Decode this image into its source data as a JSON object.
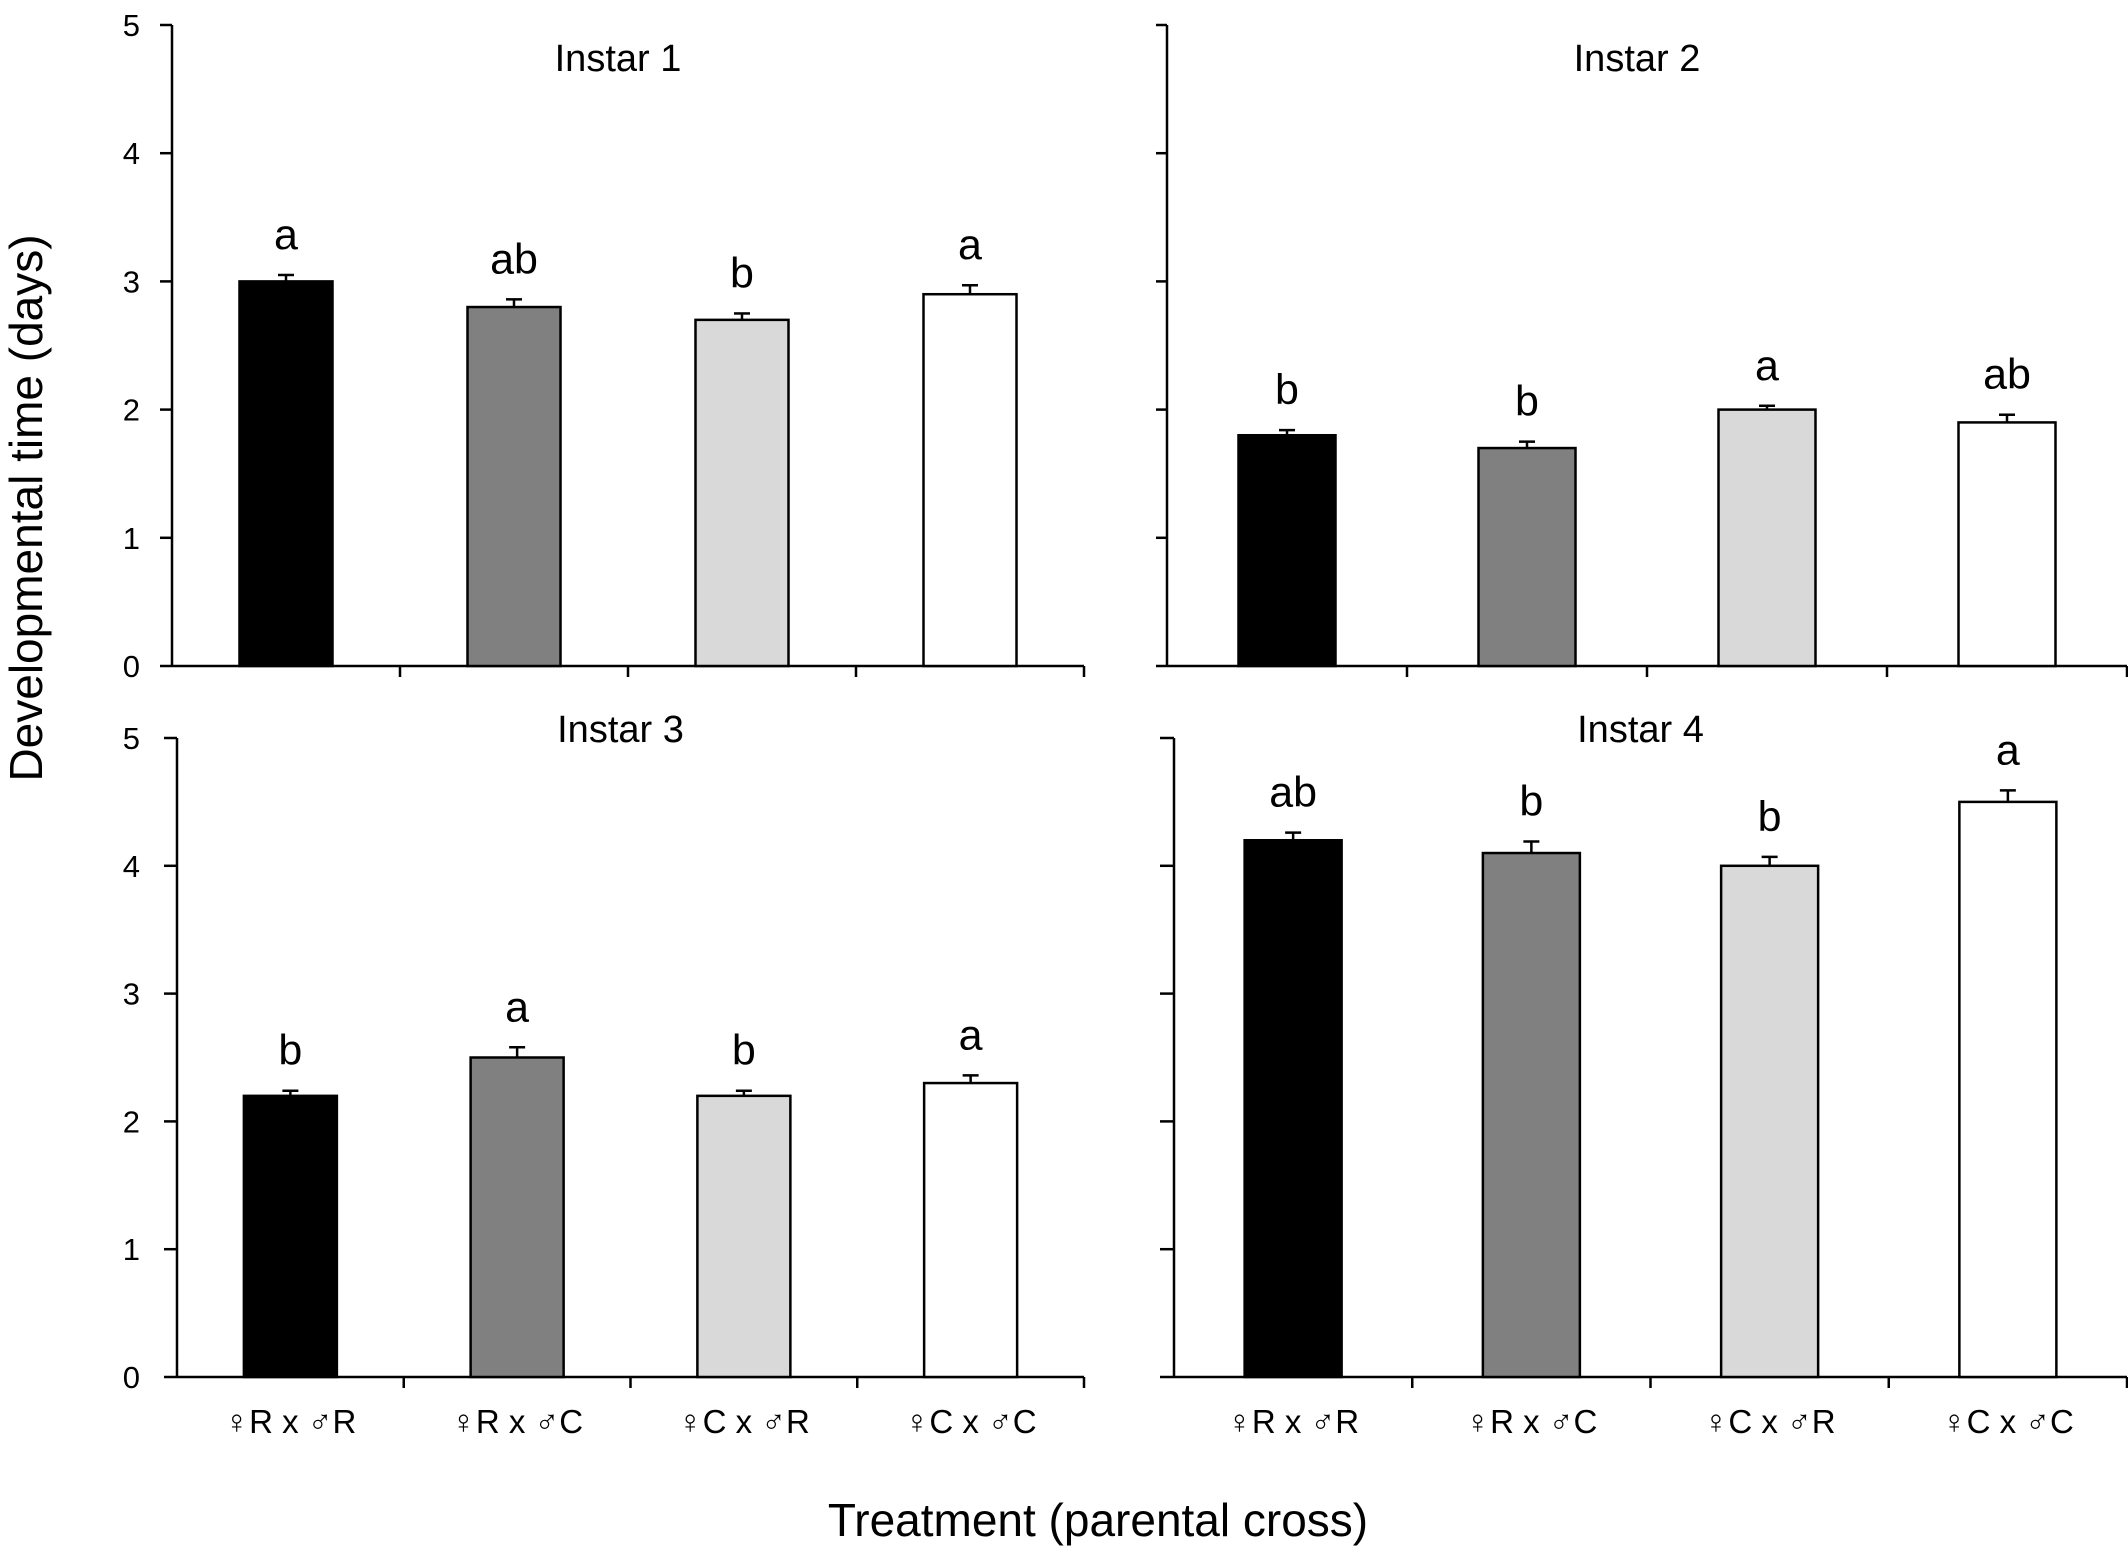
{
  "figure": {
    "ylabel": "Developmental time (days)",
    "xlabel": "Treatment (parental cross)"
  },
  "chart_data": [
    {
      "type": "bar",
      "title": "Instar 1",
      "categories": [
        "♀R x ♂R",
        "♀R x ♂C",
        "♀C x ♂R",
        "♀C x ♂C"
      ],
      "values": [
        3.0,
        2.8,
        2.7,
        2.9
      ],
      "errors": [
        0.05,
        0.06,
        0.05,
        0.07
      ],
      "letters": [
        "a",
        "ab",
        "b",
        "a"
      ],
      "ylim": [
        0,
        5
      ],
      "yticks": [
        0,
        1,
        2,
        3,
        4,
        5
      ],
      "show_categories": false
    },
    {
      "type": "bar",
      "title": "Instar 2",
      "categories": [
        "♀R x ♂R",
        "♀R x ♂C",
        "♀C x ♂R",
        "♀C x ♂C"
      ],
      "values": [
        1.8,
        1.7,
        2.0,
        1.9
      ],
      "errors": [
        0.04,
        0.05,
        0.03,
        0.06
      ],
      "letters": [
        "b",
        "b",
        "a",
        "ab"
      ],
      "ylim": [
        0,
        5
      ],
      "yticks": [],
      "show_categories": false
    },
    {
      "type": "bar",
      "title": "Instar 3",
      "categories": [
        "♀R x ♂R",
        "♀R x ♂C",
        "♀C x ♂R",
        "♀C x ♂C"
      ],
      "values": [
        2.2,
        2.5,
        2.2,
        2.3
      ],
      "errors": [
        0.04,
        0.08,
        0.04,
        0.06
      ],
      "letters": [
        "b",
        "a",
        "b",
        "a"
      ],
      "ylim": [
        0,
        5
      ],
      "yticks": [
        0,
        1,
        2,
        3,
        4,
        5
      ],
      "show_categories": true
    },
    {
      "type": "bar",
      "title": "Instar 4",
      "categories": [
        "♀R x ♂R",
        "♀R x ♂C",
        "♀C x ♂R",
        "♀C x ♂C"
      ],
      "values": [
        4.2,
        4.1,
        4.0,
        4.5
      ],
      "errors": [
        0.06,
        0.09,
        0.07,
        0.09
      ],
      "letters": [
        "ab",
        "b",
        "b",
        "a"
      ],
      "ylim": [
        0,
        5
      ],
      "yticks": [],
      "show_categories": true
    }
  ],
  "colors": {
    "bars": [
      "#000000",
      "#808080",
      "#d9d9d9",
      "#ffffff"
    ],
    "outline": "#000000",
    "axis": "#000000"
  }
}
